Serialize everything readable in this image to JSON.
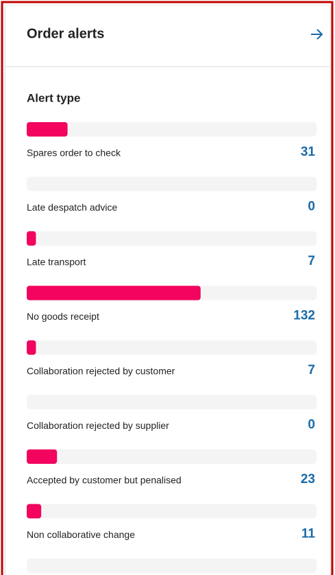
{
  "header": {
    "title": "Order alerts"
  },
  "chart_data": {
    "type": "bar",
    "title": "Alert type",
    "categories": [
      "Spares order to check",
      "Late despatch advice",
      "Late transport",
      "No goods receipt",
      "Collaboration rejected by customer",
      "Collaboration rejected by supplier",
      "Accepted by customer but penalised",
      "Non collaborative change"
    ],
    "values": [
      31,
      0,
      7,
      132,
      7,
      0,
      23,
      11
    ],
    "color": "#f2045f",
    "xlim": [
      0,
      220
    ]
  }
}
